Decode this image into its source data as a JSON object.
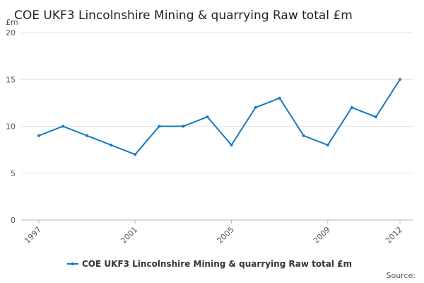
{
  "chart_data": {
    "type": "line",
    "title": "COE UKF3 Lincolnshire Mining & quarrying Raw total £m",
    "y_unit": "£m",
    "source": "Source:",
    "x": [
      1997,
      1998,
      1999,
      2000,
      2001,
      2002,
      2003,
      2004,
      2005,
      2006,
      2007,
      2008,
      2009,
      2010,
      2011,
      2012
    ],
    "series": [
      {
        "name": "COE UKF3 Lincolnshire Mining & quarrying Raw total £m",
        "color": "#1479bd",
        "values": [
          9,
          10,
          9,
          8,
          7,
          10,
          10,
          11,
          8,
          12,
          13,
          9,
          8,
          12,
          11,
          15
        ]
      }
    ],
    "xlim": [
      1997,
      2012
    ],
    "xticks": [
      1997,
      2001,
      2005,
      2009,
      2012
    ],
    "ylim": [
      0,
      20
    ],
    "yticks": [
      0,
      5,
      10,
      15,
      20
    ],
    "grid": true,
    "legend": "bottom"
  }
}
